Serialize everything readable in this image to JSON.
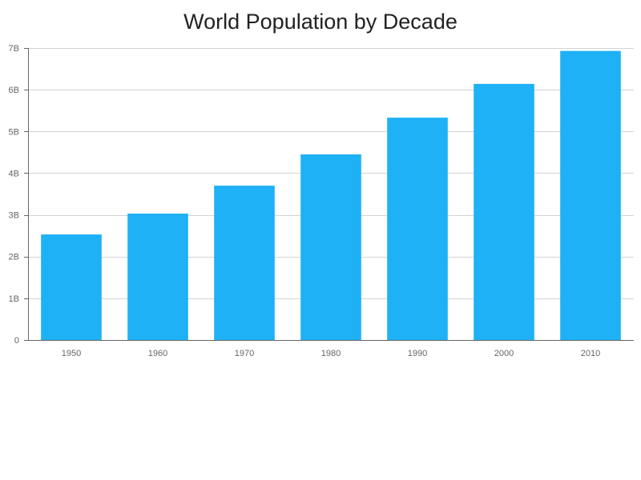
{
  "colors": {
    "bar": "#1eb1f5",
    "grid": "#d3d3d3",
    "axis": "#666666",
    "title": "#222222",
    "tick_text": "#666666"
  },
  "chart_data": {
    "type": "bar",
    "title": "World Population by Decade",
    "xlabel": "",
    "ylabel": "",
    "categories": [
      "1950",
      "1960",
      "1970",
      "1980",
      "1990",
      "2000",
      "2010"
    ],
    "values": [
      2.53,
      3.03,
      3.7,
      4.45,
      5.33,
      6.14,
      6.93
    ],
    "value_unit": "billions",
    "ylim": [
      0,
      7
    ],
    "y_ticks": [
      0,
      1,
      2,
      3,
      4,
      5,
      6,
      7
    ],
    "y_tick_labels": [
      "0",
      "1B",
      "2B",
      "3B",
      "4B",
      "5B",
      "6B",
      "7B"
    ],
    "grid": "horizontal",
    "legend": "none"
  }
}
